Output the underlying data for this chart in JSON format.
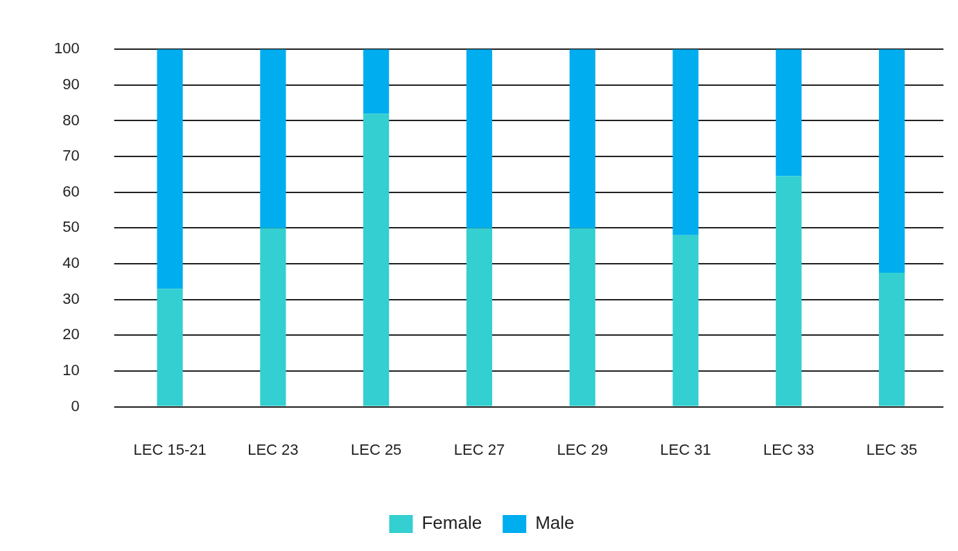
{
  "chart_data": {
    "type": "bar",
    "stacked": true,
    "categories": [
      "LEC 15-21",
      "LEC 23",
      "LEC 25",
      "LEC 27",
      "LEC 29",
      "LEC 31",
      "LEC 33",
      "LEC 35"
    ],
    "series": [
      {
        "name": "Female",
        "color": "#33cfd1",
        "values": [
          33,
          50,
          82,
          50,
          50,
          48,
          64.5,
          37.5
        ]
      },
      {
        "name": "Male",
        "color": "#00adef",
        "values": [
          67,
          50,
          18,
          50,
          50,
          52,
          35.5,
          62.5
        ]
      }
    ],
    "ylim": [
      0,
      100
    ],
    "yticks": [
      0,
      10,
      20,
      30,
      40,
      50,
      60,
      70,
      80,
      90,
      100
    ],
    "grid": "y",
    "legend": "bottom"
  }
}
